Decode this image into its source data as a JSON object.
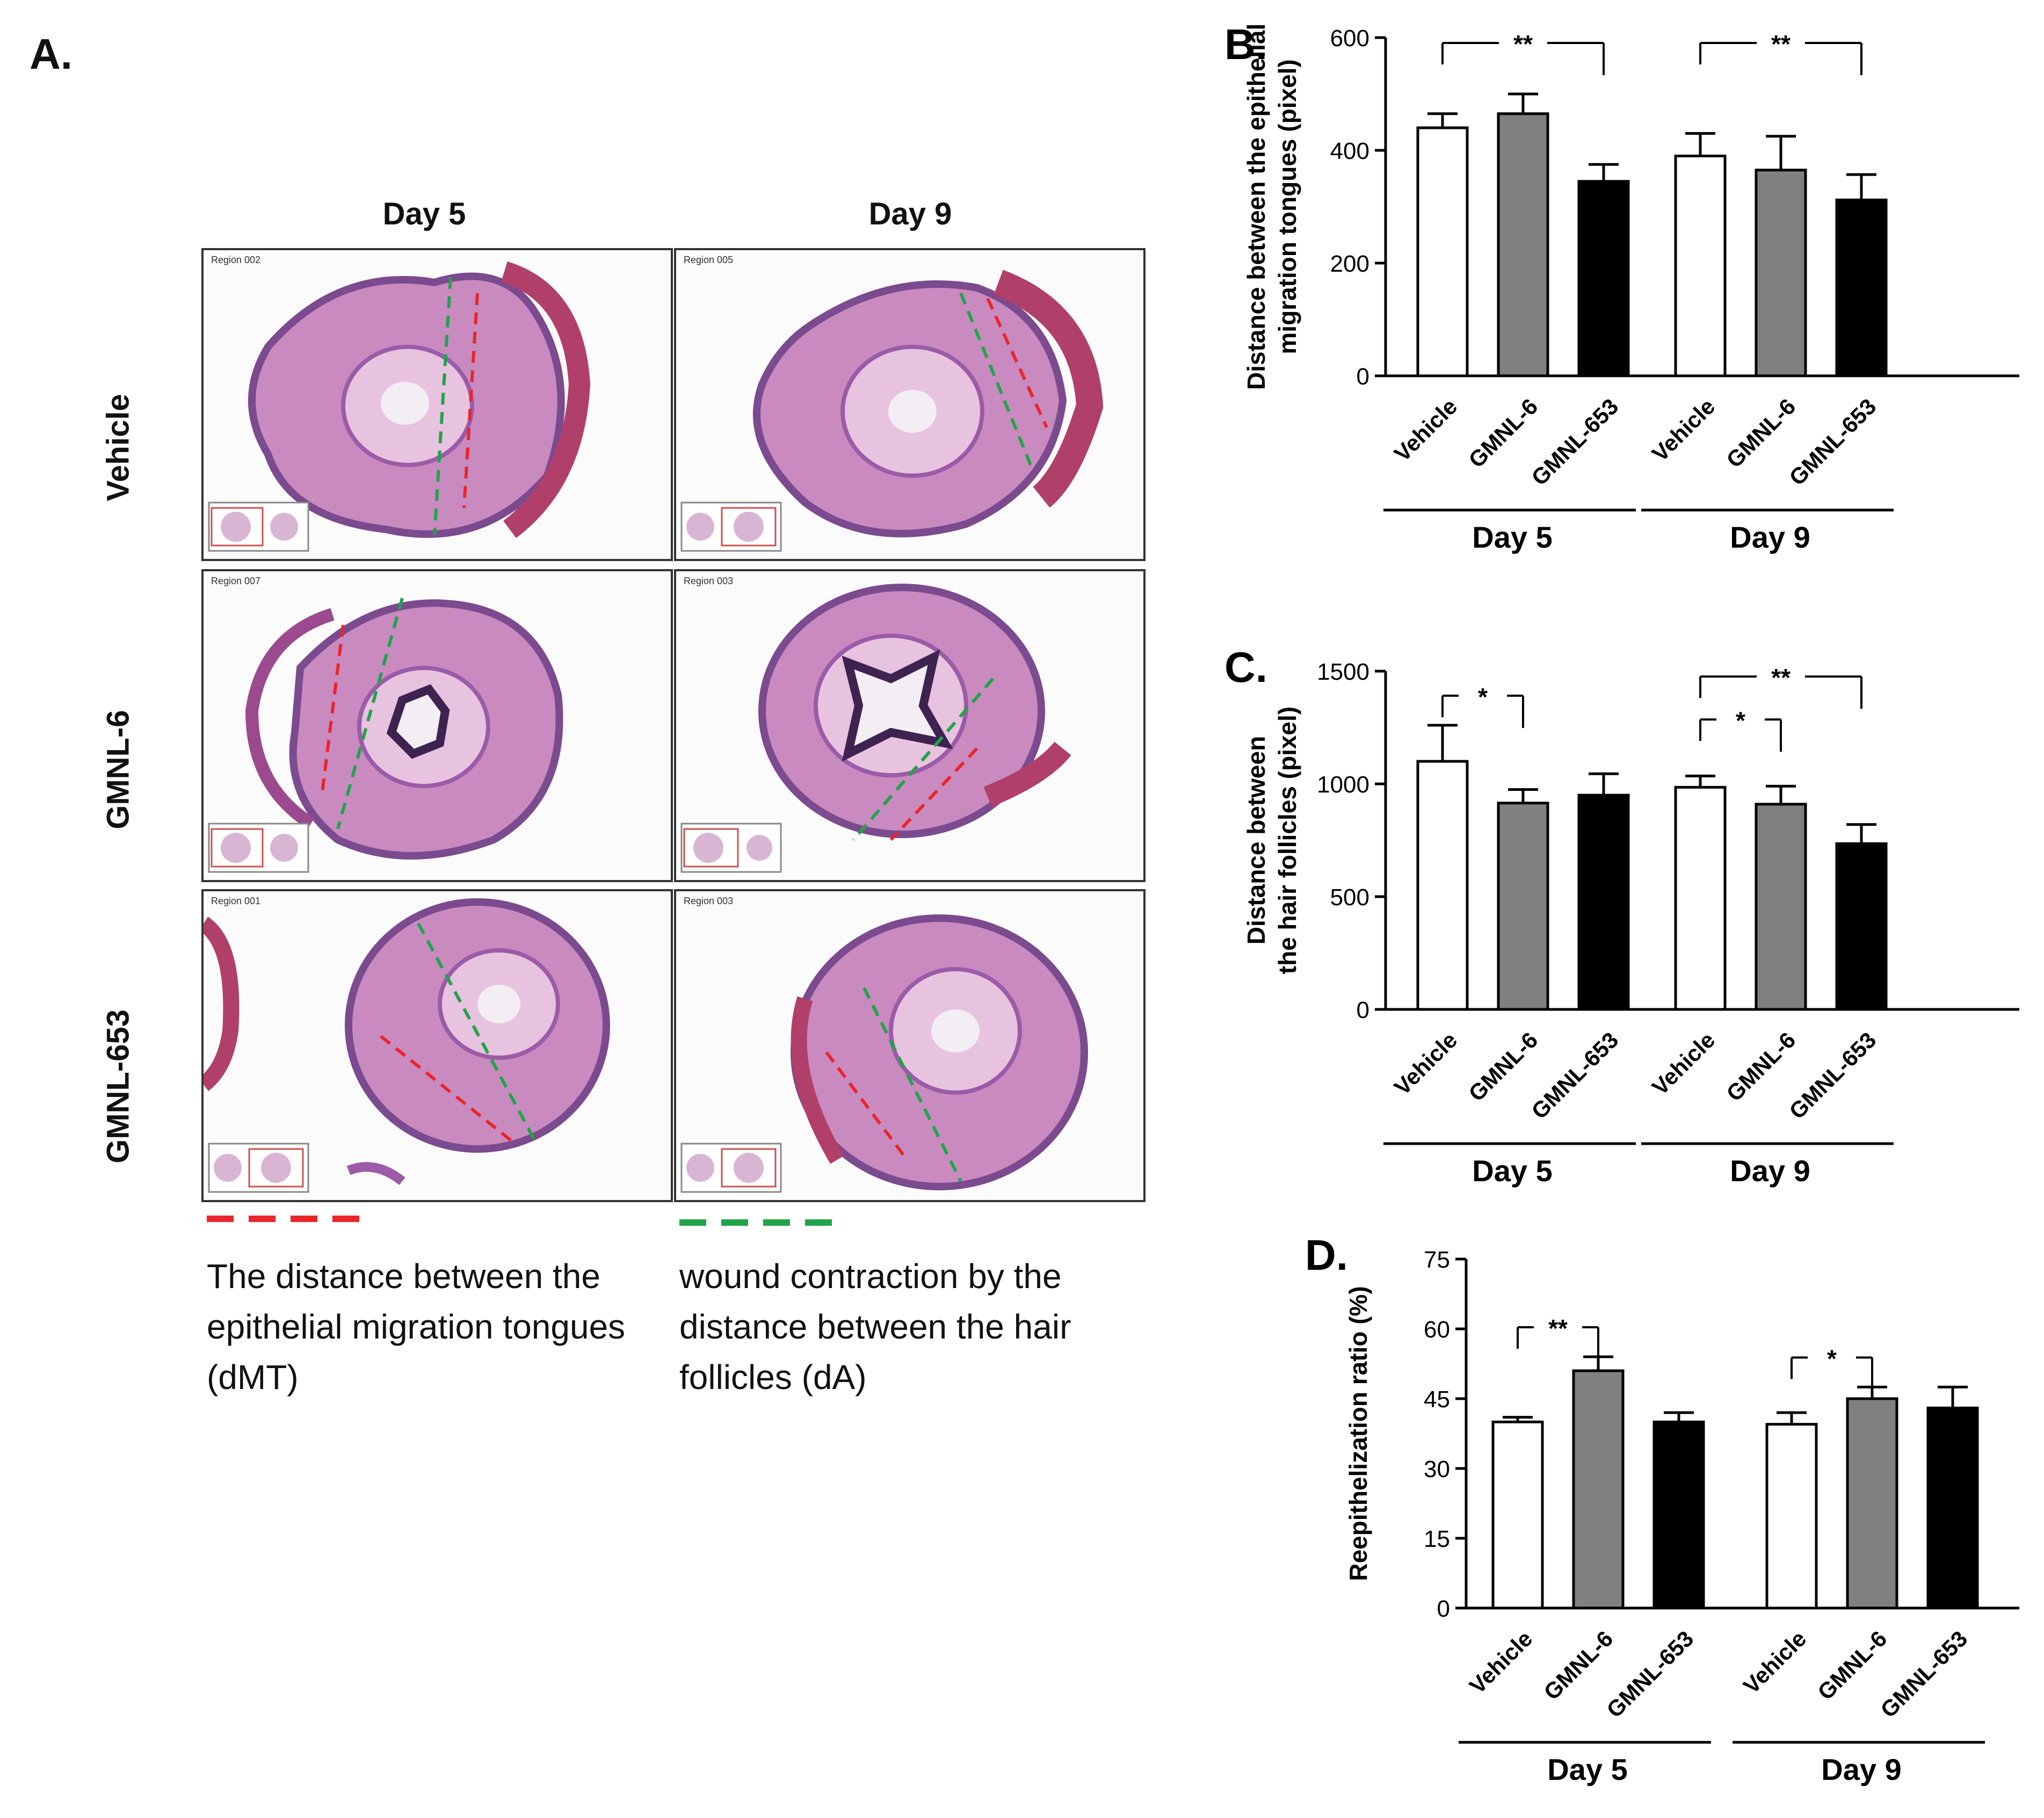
{
  "panel_a": {
    "label": "A.",
    "columns": [
      "Day 5",
      "Day 9"
    ],
    "rows": [
      "Vehicle",
      "GMNL-6",
      "GMNL-653"
    ],
    "regions": [
      [
        "Region 002",
        "Region 005"
      ],
      [
        "Region 007",
        "Region 003"
      ],
      [
        "Region 001",
        "Region 003"
      ]
    ],
    "legend": {
      "red_text": "The distance between the epithelial migration tongues (dMT)",
      "green_text": "wound contraction by the distance between the hair follicles (dA)",
      "red_color": "#e8262b",
      "green_color": "#22a34a"
    }
  },
  "colors": {
    "vehicle": "#ffffff",
    "gmnl6": "#808080",
    "gmnl653": "#000000",
    "tissue": "#c98bbf",
    "tissue_dark": "#7b4a8f"
  },
  "chart_data": [
    {
      "panel": "B.",
      "type": "bar",
      "ylabel_lines": [
        "Distance between the epithelial",
        "migration tongues (pixel)"
      ],
      "ylim": [
        0,
        600
      ],
      "yticks": [
        0,
        200,
        400,
        600
      ],
      "groups": [
        "Day 5",
        "Day 9"
      ],
      "categories": [
        "Vehicle",
        "GMNL-6",
        "GMNL-653"
      ],
      "series": [
        {
          "group": "Day 5",
          "values": [
            440,
            465,
            345
          ],
          "errors": [
            25,
            35,
            30
          ]
        },
        {
          "group": "Day 9",
          "values": [
            390,
            365,
            312
          ],
          "errors": [
            40,
            60,
            45
          ]
        }
      ],
      "annotations": [
        {
          "label": "**",
          "group": 0,
          "from": 0,
          "to": 2
        },
        {
          "label": "**",
          "group": 1,
          "from": 0,
          "to": 2
        }
      ]
    },
    {
      "panel": "C.",
      "type": "bar",
      "ylabel_lines": [
        "Distance between",
        "the hair follicles (pixel)"
      ],
      "ylim": [
        0,
        1500
      ],
      "yticks": [
        0,
        500,
        1000,
        1500
      ],
      "groups": [
        "Day 5",
        "Day 9"
      ],
      "categories": [
        "Vehicle",
        "GMNL-6",
        "GMNL-653"
      ],
      "series": [
        {
          "group": "Day 5",
          "values": [
            1100,
            915,
            950
          ],
          "errors": [
            160,
            60,
            95
          ]
        },
        {
          "group": "Day 9",
          "values": [
            985,
            910,
            735
          ],
          "errors": [
            50,
            80,
            85
          ]
        }
      ],
      "annotations": [
        {
          "label": "*",
          "group": 0,
          "from": 0,
          "to": 1
        },
        {
          "label": "*",
          "group": 1,
          "from": 0,
          "to": 1
        },
        {
          "label": "**",
          "group": 1,
          "from": 0,
          "to": 2
        }
      ]
    },
    {
      "panel": "D.",
      "type": "bar",
      "ylabel_lines": [
        "Reepithelization ratio (%)"
      ],
      "ylim": [
        0,
        75
      ],
      "yticks": [
        0,
        15,
        30,
        45,
        60,
        75
      ],
      "groups": [
        "Day 5",
        "Day 9"
      ],
      "categories": [
        "Vehicle",
        "GMNL-6",
        "GMNL-653"
      ],
      "series": [
        {
          "group": "Day 5",
          "values": [
            40,
            51,
            40
          ],
          "errors": [
            1,
            3,
            2
          ]
        },
        {
          "group": "Day 9",
          "values": [
            39.5,
            45,
            43
          ],
          "errors": [
            2.5,
            2.5,
            4.5
          ]
        }
      ],
      "annotations": [
        {
          "label": "**",
          "group": 0,
          "from": 0,
          "to": 1
        },
        {
          "label": "*",
          "group": 1,
          "from": 0,
          "to": 1
        }
      ]
    }
  ]
}
